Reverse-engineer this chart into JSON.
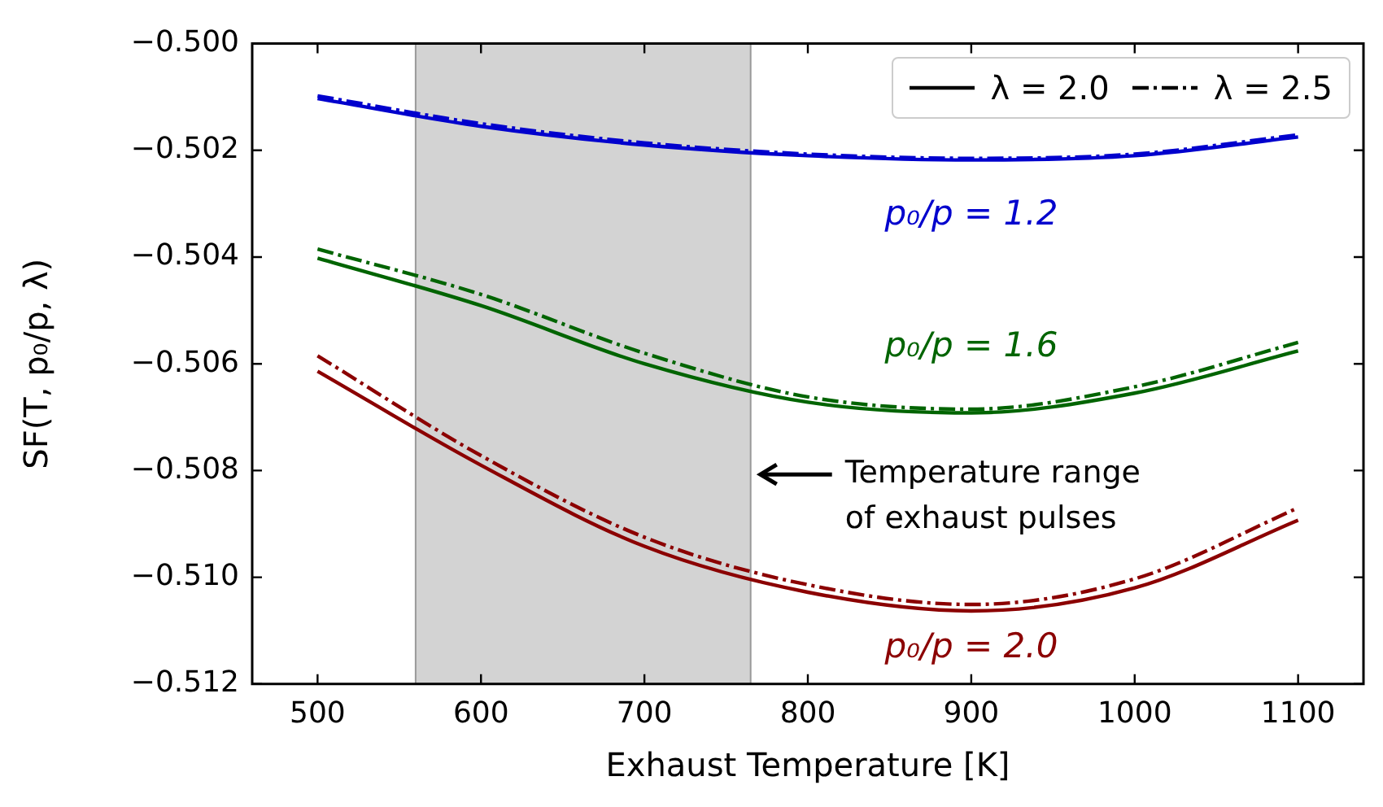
{
  "chart_data": {
    "type": "line",
    "xlabel": "Exhaust Temperature [K]",
    "ylabel": "SF(T, p₀/p, λ)",
    "x": [
      500,
      600,
      700,
      800,
      900,
      1000,
      1100
    ],
    "series": [
      {
        "name": "λ = 2.0",
        "color": "#0000cd",
        "line_style": "solid",
        "values": [
          -0.50103,
          -0.50155,
          -0.5019,
          -0.5021,
          -0.50218,
          -0.5021,
          -0.50175
        ]
      },
      {
        "name": "λ = 2.5",
        "color": "#0000cd",
        "line_style": "dashdot",
        "values": [
          -0.50098,
          -0.5015,
          -0.50186,
          -0.50207,
          -0.50215,
          -0.50207,
          -0.50171
        ]
      },
      {
        "color": "#006400",
        "line_style": "solid",
        "values": [
          -0.50402,
          -0.50491,
          -0.506,
          -0.50672,
          -0.50692,
          -0.50655,
          -0.50576
        ]
      },
      {
        "color": "#006400",
        "line_style": "dashdot",
        "values": [
          -0.50385,
          -0.5047,
          -0.5058,
          -0.50662,
          -0.50685,
          -0.50643,
          -0.5056
        ]
      },
      {
        "color": "#8b0000",
        "line_style": "solid",
        "values": [
          -0.50614,
          -0.5079,
          -0.50942,
          -0.51028,
          -0.51063,
          -0.5102,
          -0.50893
        ]
      },
      {
        "color": "#8b0000",
        "line_style": "dashdot",
        "values": [
          -0.50585,
          -0.50772,
          -0.50925,
          -0.51014,
          -0.51051,
          -0.51003,
          -0.5087
        ]
      }
    ],
    "xlim": [
      460,
      1140
    ],
    "xticks": [
      500,
      600,
      700,
      800,
      900,
      1000,
      1100
    ],
    "ylim": [
      -0.512,
      -0.5
    ],
    "yticks": [
      {
        "value": -0.512,
        "label": "−0.512"
      },
      {
        "value": -0.51,
        "label": "−0.510"
      },
      {
        "value": -0.508,
        "label": "−0.508"
      },
      {
        "value": -0.506,
        "label": "−0.506"
      },
      {
        "value": -0.504,
        "label": "−0.504"
      },
      {
        "value": -0.502,
        "label": "−0.502"
      },
      {
        "value": -0.5,
        "label": "−0.500"
      }
    ],
    "bands": [
      {
        "axis": "x",
        "from": 560,
        "to": 765,
        "label": "Temperature range\nof exhaust pulses",
        "color": "#d3d3d3"
      }
    ],
    "annotations": [
      "p₀/p = 1.2",
      "p₀/p = 1.6",
      "p₀/p = 2.0"
    ],
    "grid": false,
    "legend": "top right"
  }
}
